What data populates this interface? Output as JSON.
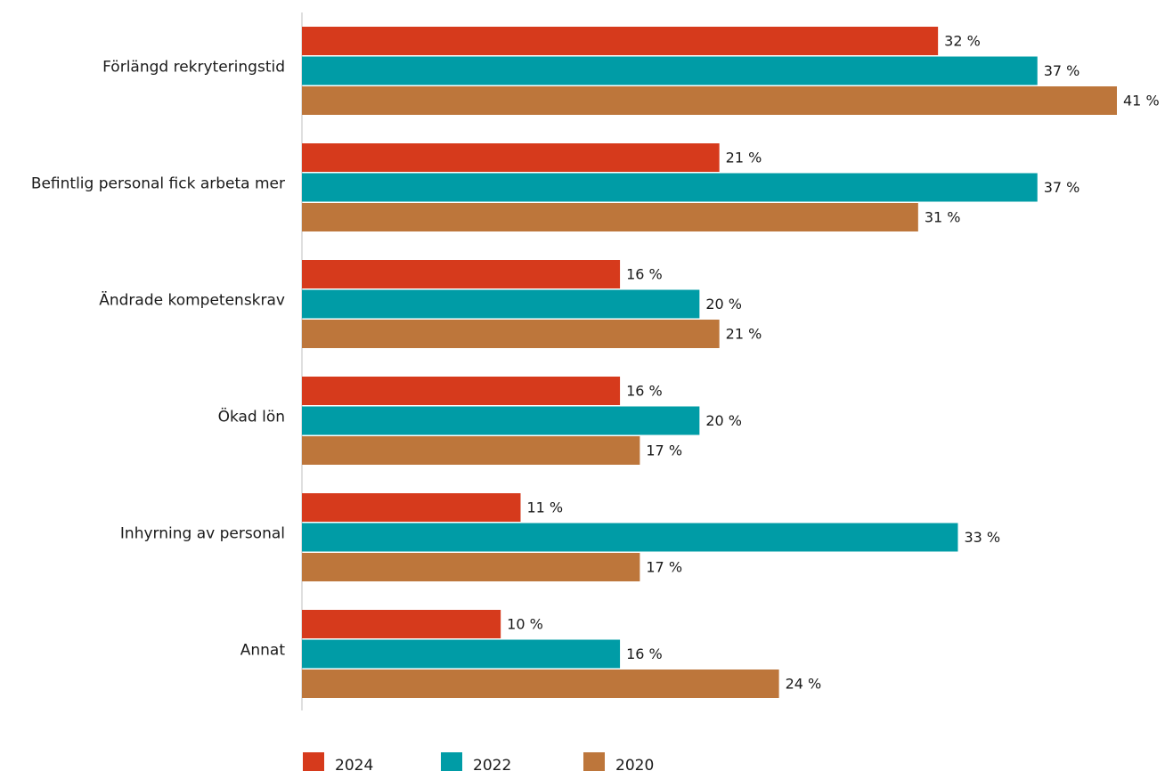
{
  "chart_data": {
    "type": "bar",
    "orientation": "horizontal",
    "title": "",
    "xlabel": "",
    "ylabel": "",
    "xlim": [
      0,
      41
    ],
    "grid": false,
    "legend_position": "bottom-left",
    "value_suffix": " %",
    "categories": [
      "Förlängd rekryteringstid",
      "Befintlig personal fick arbeta mer",
      "Ändrade kompetenskrav",
      "Ökad lön",
      "Inhyrning av personal",
      "Annat"
    ],
    "series": [
      {
        "name": "2024",
        "color": "#d63a1c",
        "values": [
          32,
          21,
          16,
          16,
          11,
          10
        ]
      },
      {
        "name": "2022",
        "color": "#009ca6",
        "values": [
          37,
          37,
          20,
          20,
          33,
          16
        ]
      },
      {
        "name": "2020",
        "color": "#bd763b",
        "values": [
          41,
          31,
          21,
          17,
          17,
          24
        ]
      }
    ]
  }
}
